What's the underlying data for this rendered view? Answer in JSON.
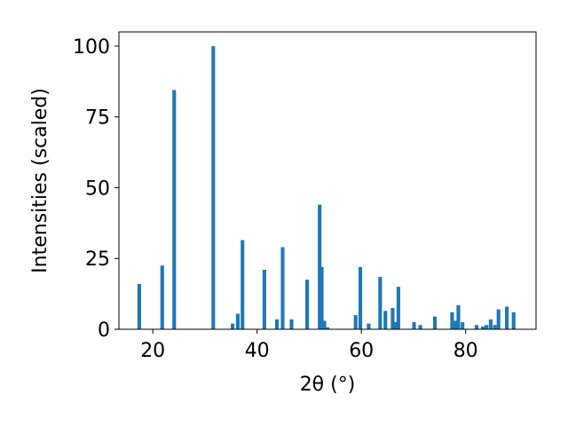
{
  "chart_data": {
    "type": "bar",
    "title": "",
    "xlabel": "2θ (°)",
    "ylabel": "Intensities (scaled)",
    "xlim": [
      13.5,
      93.5
    ],
    "ylim": [
      0,
      105
    ],
    "xticks": [
      20,
      40,
      60,
      80
    ],
    "yticks": [
      0,
      25,
      50,
      75,
      100
    ],
    "grid": false,
    "bar_color": "#1f77b4",
    "bar_width": 0.7,
    "x": [
      17.4,
      21.8,
      24.1,
      31.6,
      35.3,
      36.3,
      37.2,
      41.4,
      43.8,
      44.9,
      46.6,
      49.6,
      52.0,
      52.4,
      52.9,
      53.5,
      58.9,
      59.8,
      61.4,
      63.6,
      64.6,
      66.0,
      66.5,
      67.1,
      70.1,
      71.3,
      74.1,
      77.4,
      78.1,
      78.6,
      79.4,
      82.1,
      83.3,
      84.0,
      84.8,
      85.6,
      86.3,
      87.9,
      89.2
    ],
    "values": [
      16,
      22.5,
      84.5,
      100,
      2,
      5.5,
      31.5,
      21,
      3.5,
      29,
      3.5,
      17.5,
      44,
      22,
      3,
      0.7,
      5,
      22,
      2,
      18.5,
      6.5,
      7.5,
      2.5,
      15,
      2.5,
      1.5,
      4.5,
      6,
      3,
      8.5,
      2.5,
      1.5,
      1,
      1.5,
      3.5,
      1.5,
      7,
      8,
      6
    ]
  }
}
